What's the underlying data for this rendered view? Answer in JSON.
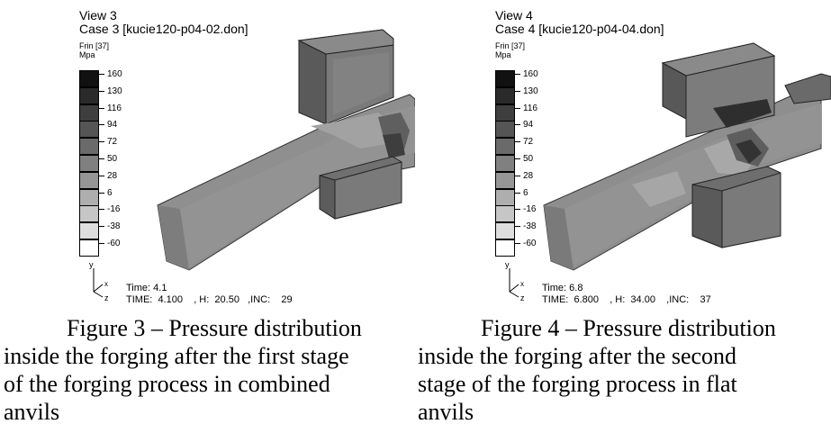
{
  "figures": [
    {
      "view": "View 3",
      "case": "Case 3  [kucie120-p04-02.don]",
      "variable": "Frin [37]",
      "unit": "Mpa",
      "legend_levels": [
        "160",
        "130",
        "116",
        "94",
        "72",
        "50",
        "28",
        "6",
        "-16",
        "-38",
        "-60"
      ],
      "legend_colors": [
        "#111111",
        "#2a2a2a",
        "#3e3e3e",
        "#555555",
        "#6a6a6a",
        "#808080",
        "#969696",
        "#aeaeae",
        "#c6c6c6",
        "#dedede",
        "#ffffff"
      ],
      "axis_labels": [
        "y",
        "z",
        "x"
      ],
      "time": "Time: 4.1",
      "time_line": "TIME:  4.100    , H:  20.50   ,INC:    29",
      "caption_lines": [
        "Figure 3 – Pressure distribution",
        "inside the forging after the first stage",
        "of the forging process in combined",
        "anvils"
      ]
    },
    {
      "view": "View 4",
      "case": "Case 4  [kucie120-p04-04.don]",
      "variable": "Frin [37]",
      "unit": "Mpa",
      "legend_levels": [
        "160",
        "130",
        "116",
        "94",
        "72",
        "50",
        "28",
        "6",
        "-16",
        "-38",
        "-60"
      ],
      "legend_colors": [
        "#111111",
        "#2a2a2a",
        "#3e3e3e",
        "#555555",
        "#6a6a6a",
        "#808080",
        "#969696",
        "#aeaeae",
        "#c6c6c6",
        "#dedede",
        "#ffffff"
      ],
      "axis_labels": [
        "y",
        "z",
        "x"
      ],
      "time": "Time: 6.8",
      "time_line": "TIME:  6.800    , H:  34.00    ,INC:    37",
      "caption_lines": [
        "Figure 4 – Pressure distribution",
        "inside the forging after the second",
        "stage of the forging process in flat",
        "anvils"
      ]
    }
  ]
}
